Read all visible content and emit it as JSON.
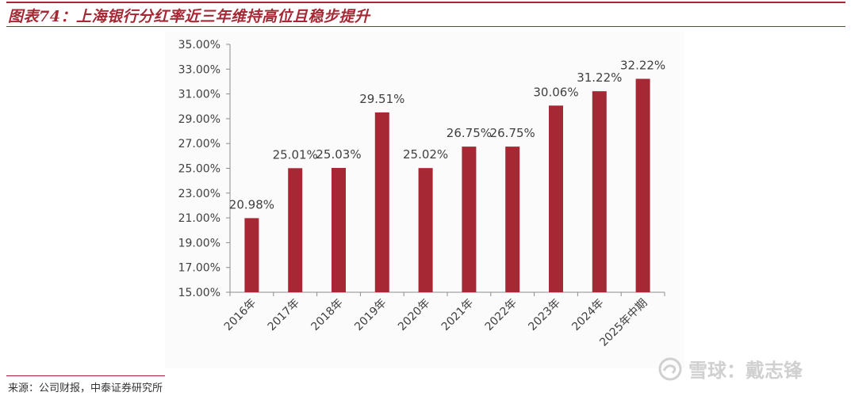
{
  "figure": {
    "title": "图表74：上海银行分红率近三年维持高位且稳步提升",
    "source": "来源：公司财报，中泰证券研究所"
  },
  "watermark": {
    "icon": "snowball-logo-icon",
    "text": "雪球：戴志锋"
  },
  "colors": {
    "accent": "#a62834",
    "bar": "#a52834",
    "axis": "#8c8c8c",
    "text": "#404040"
  },
  "chart_data": {
    "type": "bar",
    "categories": [
      "2016年",
      "2017年",
      "2018年",
      "2019年",
      "2020年",
      "2021年",
      "2022年",
      "2023年",
      "2024年",
      "2025年中期"
    ],
    "values": [
      20.98,
      25.01,
      25.03,
      29.51,
      25.02,
      26.75,
      26.75,
      30.06,
      31.22,
      32.22
    ],
    "data_labels": [
      "20.98%",
      "25.01%",
      "25.03%",
      "29.51%",
      "25.02%",
      "26.75%",
      "26.75%",
      "30.06%",
      "31.22%",
      "32.22%"
    ],
    "ylim": [
      15,
      35
    ],
    "yticks": [
      15,
      17,
      19,
      21,
      23,
      25,
      27,
      29,
      31,
      33,
      35
    ],
    "ytick_labels": [
      "15.00%",
      "17.00%",
      "19.00%",
      "21.00%",
      "23.00%",
      "25.00%",
      "27.00%",
      "29.00%",
      "31.00%",
      "33.00%",
      "35.00%"
    ],
    "title": "",
    "xlabel": "",
    "ylabel": "",
    "grid": false,
    "legend": "none"
  }
}
